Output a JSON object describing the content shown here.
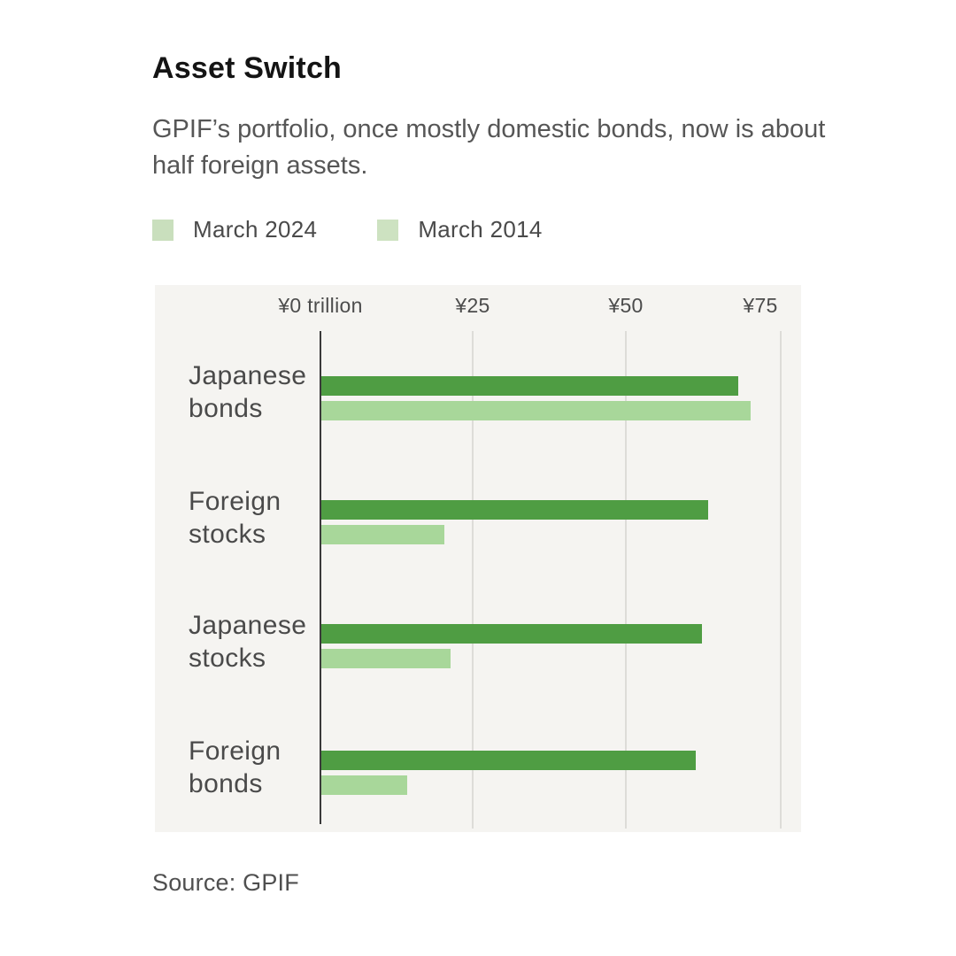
{
  "header": {
    "title": "Asset Switch",
    "subtitle": "GPIF’s portfolio, once mostly domestic bonds, now is about half foreign assets."
  },
  "legend": {
    "items": [
      {
        "label": "March 2024",
        "swatch_color": "#c9dfbd"
      },
      {
        "label": "March 2014",
        "swatch_color": "#cde2c1"
      }
    ]
  },
  "chart_data": {
    "type": "bar",
    "orientation": "horizontal",
    "title": "Asset Switch",
    "unit": "yen trillion",
    "xlim": [
      0,
      75
    ],
    "grid": true,
    "categories": [
      "Japanese bonds",
      "Foreign stocks",
      "Japanese stocks",
      "Foreign bonds"
    ],
    "series": [
      {
        "name": "March 2024",
        "color": "#4f9d43",
        "values": [
          68,
          63,
          62,
          61
        ]
      },
      {
        "name": "March 2014",
        "color": "#a8d79a",
        "values": [
          70,
          20,
          21,
          14
        ]
      }
    ],
    "x_ticks": [
      {
        "label": "¥0 trillion",
        "value": 0
      },
      {
        "label": "¥25",
        "value": 25
      },
      {
        "label": "¥50",
        "value": 50
      },
      {
        "label": "¥75",
        "value": 75
      }
    ]
  },
  "source": {
    "text": "Source: GPIF"
  }
}
